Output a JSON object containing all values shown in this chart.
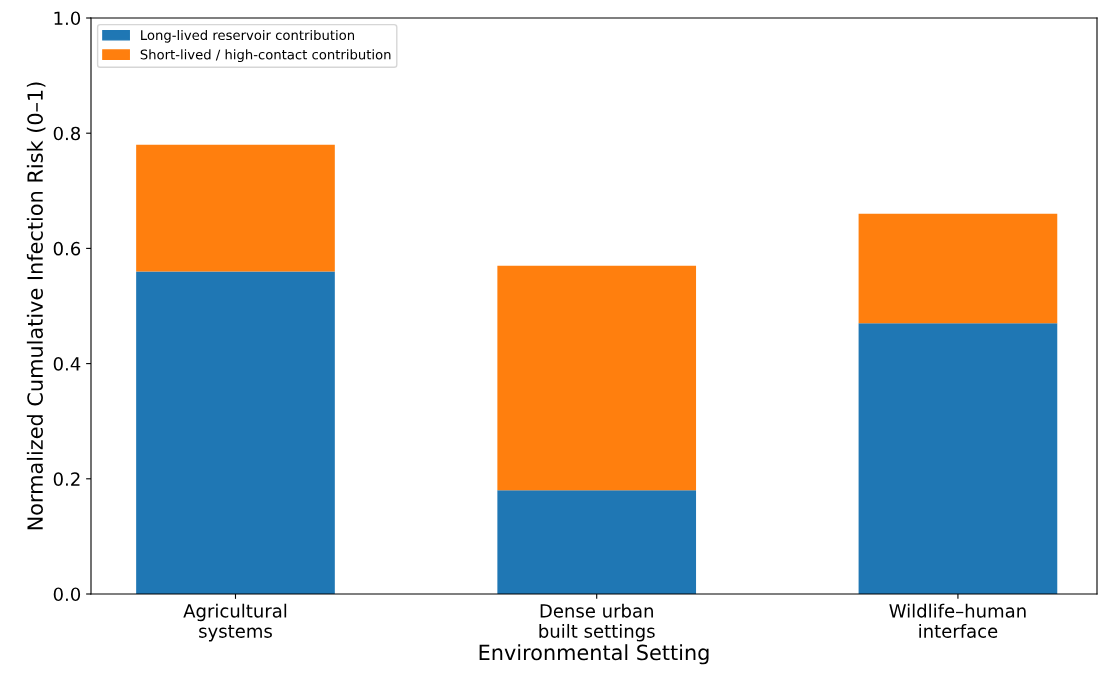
{
  "chart_data": {
    "type": "bar",
    "stacked": true,
    "xlabel": "Environmental Setting",
    "ylabel": "Normalized Cumulative Infection Risk (0–1)",
    "categories": [
      "Agricultural\nsystems",
      "Dense urban\nbuilt settings",
      "Wildlife–human\ninterface"
    ],
    "series": [
      {
        "name": "Long-lived reservoir contribution",
        "color": "#1f77b4",
        "values": [
          0.56,
          0.18,
          0.47
        ]
      },
      {
        "name": "Short-lived / high-contact contribution",
        "color": "#ff7f0e",
        "values": [
          0.22,
          0.39,
          0.19
        ]
      }
    ],
    "ylim": [
      0,
      1.0
    ],
    "yticks": [
      {
        "value": 0,
        "label": "0.0"
      },
      {
        "value": 0.2,
        "label": "0.2"
      },
      {
        "value": 0.4,
        "label": "0.4"
      },
      {
        "value": 0.6,
        "label": "0.6"
      },
      {
        "value": 0.8,
        "label": "0.8"
      },
      {
        "value": 1.0,
        "label": "1.0"
      }
    ],
    "legend": "top left",
    "grid": false
  }
}
